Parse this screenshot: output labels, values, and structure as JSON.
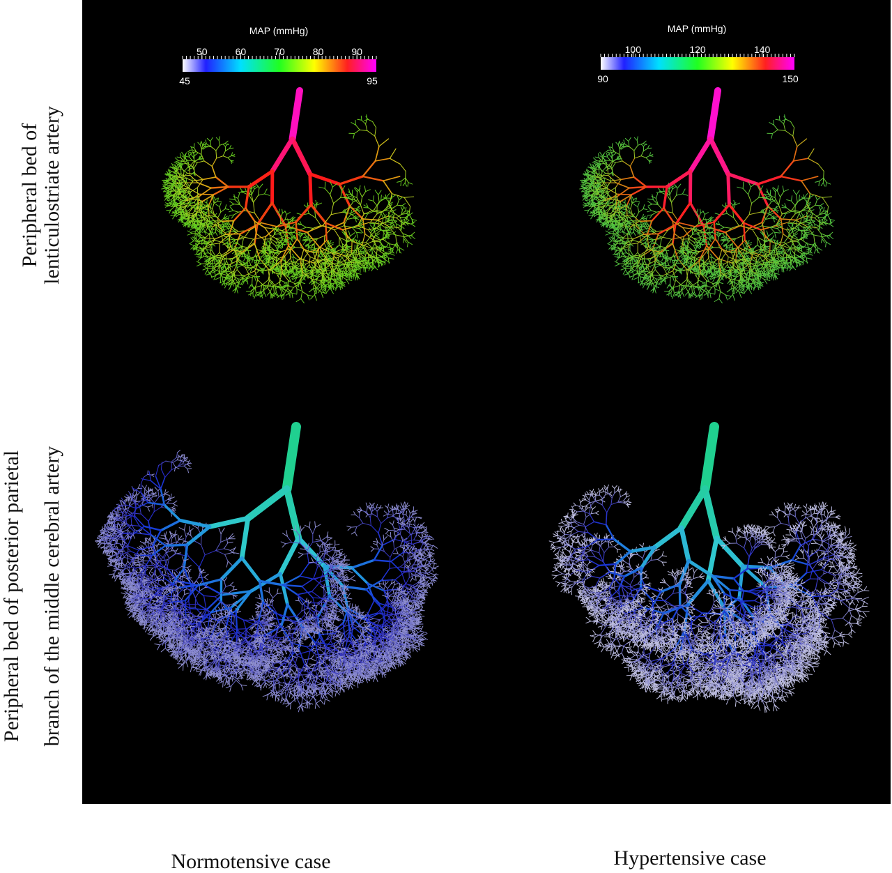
{
  "colorbars": [
    {
      "title": "MAP (mmHg)",
      "range": [
        45,
        95
      ],
      "ticks": [
        50,
        60,
        70,
        80,
        90
      ]
    },
    {
      "title": "MAP (mmHg)",
      "range": [
        90,
        150
      ],
      "ticks": [
        100,
        120,
        140
      ]
    }
  ],
  "row_labels": [
    [
      "Peripheral bed of",
      "lenticulostriate artery"
    ],
    [
      "Peripheral bed of posterior parietal",
      "branch of the middle cerebral artery"
    ]
  ],
  "column_labels": [
    "Normotensive case",
    "Hypertensive case"
  ]
}
